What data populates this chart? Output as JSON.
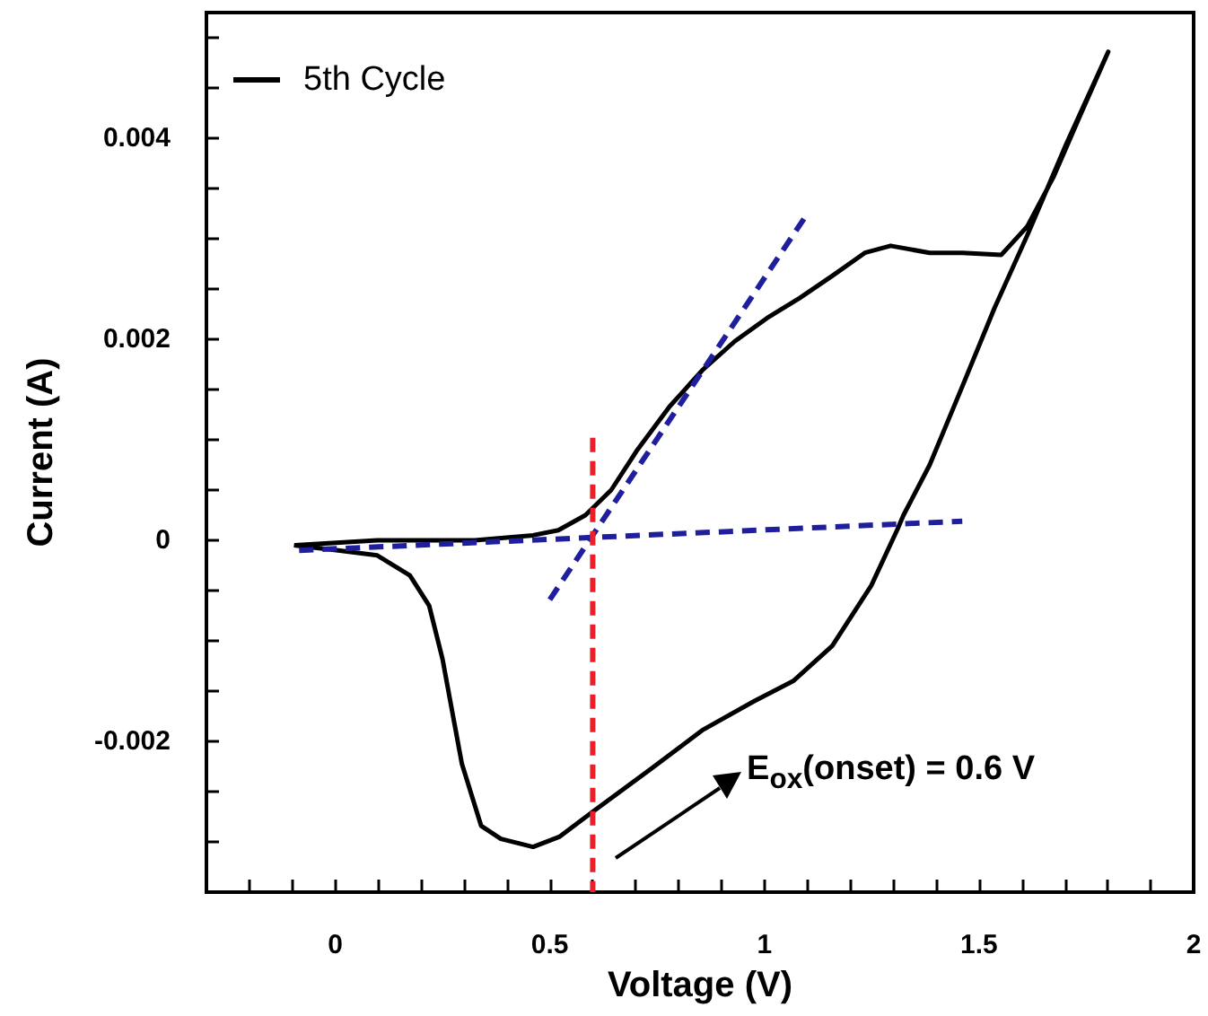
{
  "chart_data": {
    "type": "line",
    "xlabel": "Voltage (V)",
    "ylabel": "Current (A)",
    "xlim": [
      -0.3,
      2
    ],
    "ylim": [
      -0.0035,
      0.00525
    ],
    "xticks": [
      {
        "value": -0.2,
        "label": null
      },
      {
        "value": -0.1,
        "label": null
      },
      0,
      {
        "value": 0.1,
        "label": null
      },
      {
        "value": 0.2,
        "label": null
      },
      {
        "value": 0.3,
        "label": null
      },
      {
        "value": 0.4,
        "label": null
      },
      0.5,
      {
        "value": 0.6,
        "label": null
      },
      {
        "value": 0.7,
        "label": null
      },
      {
        "value": 0.8,
        "label": null
      },
      {
        "value": 0.9,
        "label": null
      },
      1,
      {
        "value": 1.1,
        "label": null
      },
      {
        "value": 1.2,
        "label": null
      },
      {
        "value": 1.3,
        "label": null
      },
      {
        "value": 1.4,
        "label": null
      },
      1.5,
      {
        "value": 1.6,
        "label": null
      },
      {
        "value": 1.7,
        "label": null
      },
      {
        "value": 1.8,
        "label": null
      },
      {
        "value": 1.9,
        "label": null
      },
      2
    ],
    "yticks": [
      {
        "value": -0.003,
        "label": null
      },
      {
        "value": -0.0025,
        "label": null
      },
      -0.002,
      {
        "value": -0.0015,
        "label": null
      },
      {
        "value": -0.001,
        "label": null
      },
      {
        "value": -0.0005,
        "label": null
      },
      0,
      {
        "value": 0.0005,
        "label": null
      },
      {
        "value": 0.001,
        "label": null
      },
      {
        "value": 0.0015,
        "label": null
      },
      0.002,
      {
        "value": 0.0025,
        "label": null
      },
      {
        "value": 0.003,
        "label": null
      },
      {
        "value": 0.0035,
        "label": null
      },
      0.004,
      {
        "value": 0.0045,
        "label": null
      },
      {
        "value": 0.005,
        "label": null
      }
    ],
    "grid": false,
    "legend": "top left",
    "marker": "none",
    "series": [
      {
        "name": "5th Cycle",
        "color": "#000000",
        "line_style": "solid",
        "x": [
          -0.094,
          0.098,
          0.325,
          0.461,
          0.52,
          0.583,
          0.643,
          0.704,
          0.779,
          0.855,
          0.931,
          1.006,
          1.082,
          1.158,
          1.234,
          1.294,
          1.385,
          1.461,
          1.552,
          1.612,
          1.673,
          1.733,
          1.801,
          1.703,
          1.612,
          1.536,
          1.461,
          1.385,
          1.324,
          1.309,
          1.249,
          1.158,
          1.067,
          0.976,
          0.855,
          0.734,
          0.597,
          0.522,
          0.461,
          0.386,
          0.34,
          0.295,
          0.25,
          0.219,
          0.174,
          0.098,
          0.007,
          -0.096
        ],
        "values": [
          -5e-05,
          0.0,
          0.0,
          5e-05,
          0.0001,
          0.00025,
          0.0005,
          0.0009,
          0.00133,
          0.00169,
          0.00198,
          0.00221,
          0.00241,
          0.00263,
          0.00286,
          0.00293,
          0.00286,
          0.00286,
          0.00284,
          0.00312,
          0.00361,
          0.0042,
          0.00486,
          0.00394,
          0.00303,
          0.00231,
          0.00153,
          0.00075,
          0.00025,
          0.0001,
          -0.00045,
          -0.00105,
          -0.0014,
          -0.0016,
          -0.00189,
          -0.00228,
          -0.00271,
          -0.00295,
          -0.00305,
          -0.00297,
          -0.00284,
          -0.00222,
          -0.00118,
          -0.00065,
          -0.00035,
          -0.00015,
          -0.0001,
          -5e-05
        ]
      },
      {
        "color": "#1f1f9e",
        "line_style": "dashed",
        "x": [
          -0.084,
          1.461
        ],
        "values": [
          -0.0001,
          0.00019
        ]
      },
      {
        "color": "#1f1f9e",
        "line_style": "dashed",
        "x": [
          0.5,
          1.097
        ],
        "values": [
          -0.00059,
          0.00323
        ]
      },
      {
        "color": "#e8202a",
        "line_style": "dashed",
        "x": [
          0.6,
          0.6
        ],
        "values": [
          0.00102,
          -0.0035
        ]
      }
    ],
    "annotations": [
      "E$_{ox}$(onset) = 0.6 V"
    ]
  }
}
